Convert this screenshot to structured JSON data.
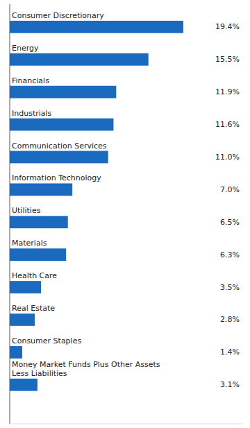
{
  "chart_data": {
    "type": "bar",
    "orientation": "horizontal",
    "categories": [
      "Consumer Discretionary",
      "Energy",
      "Financials",
      "Industrials",
      "Communication Services",
      "Information Technology",
      "Utilities",
      "Materials",
      "Health Care",
      "Real Estate",
      "Consumer Staples",
      "Money Market Funds Plus Other Assets\nLess Liabilities"
    ],
    "values": [
      19.4,
      15.5,
      11.9,
      11.6,
      11.0,
      7.0,
      6.5,
      6.3,
      3.5,
      2.8,
      1.4,
      3.1
    ],
    "value_labels": [
      "19.4%",
      "15.5%",
      "11.9%",
      "11.6%",
      "11.0%",
      "7.0%",
      "6.5%",
      "6.3%",
      "3.5%",
      "2.8%",
      "1.4%",
      "3.1%"
    ],
    "color": "#1a6bbf",
    "xlim": [
      0,
      26
    ],
    "data_labels": true,
    "tick_labels": false,
    "grid": false
  }
}
